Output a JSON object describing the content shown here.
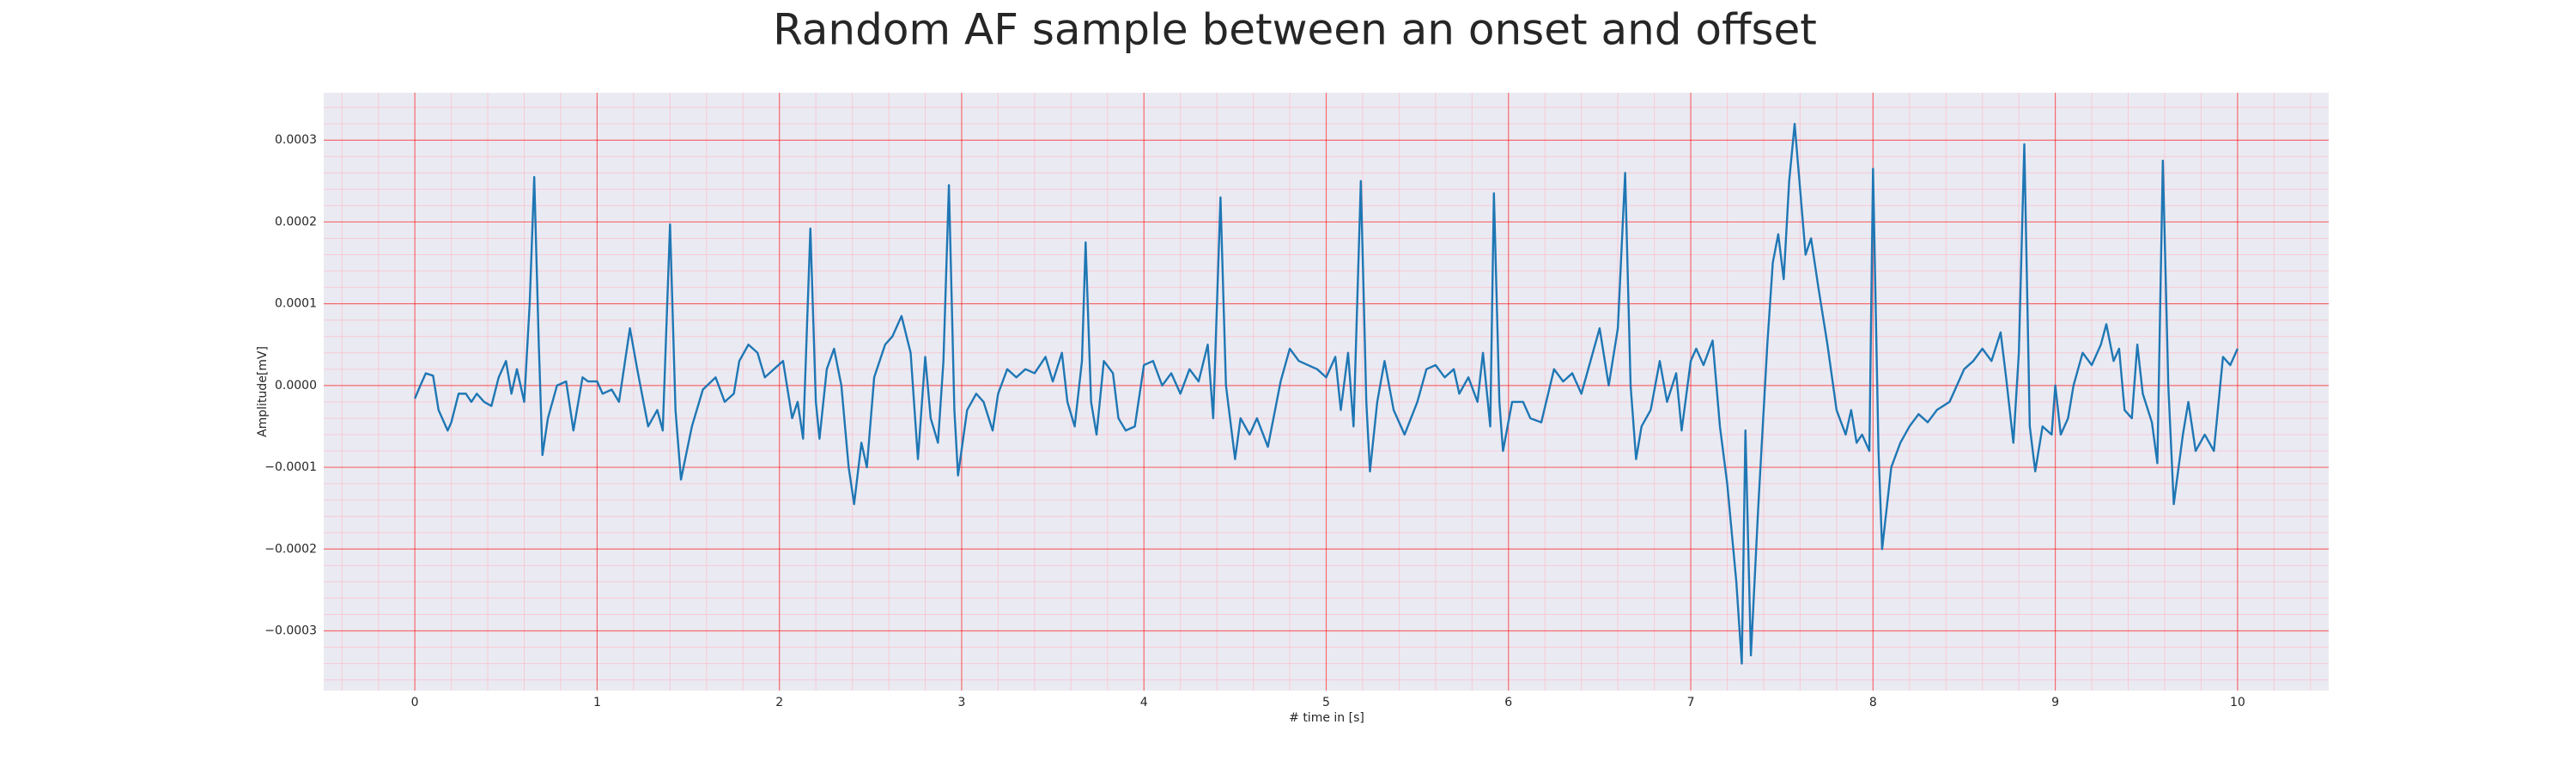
{
  "chart_data": {
    "type": "line",
    "title": "Random AF sample between an onset and offset",
    "x_label": "# time in [s]",
    "y_label": "Amplitude[mV]",
    "color": "#1f77b4",
    "background": "#eaeaf2",
    "grid": true,
    "grid_color": "#ff0000",
    "minor_grid": true,
    "minor_grid_color": "#ffb6c1",
    "xlim": [
      -0.5,
      10.5
    ],
    "ylim": [
      -0.000373,
      0.000358
    ],
    "xticks": [
      0,
      1,
      2,
      3,
      4,
      5,
      6,
      7,
      8,
      9,
      10
    ],
    "yticks": [
      {
        "value": -0.0003,
        "label": "−0.0003"
      },
      {
        "value": -0.0002,
        "label": "−0.0002"
      },
      {
        "value": -0.0001,
        "label": "−0.0001"
      },
      {
        "value": 0,
        "label": "0.0000"
      },
      0.0001,
      0.0002,
      0.0003
    ],
    "x": [
      0,
      0.03,
      0.06,
      0.1,
      0.13,
      0.18,
      0.2,
      0.24,
      0.28,
      0.31,
      0.34,
      0.38,
      0.42,
      0.46,
      0.5,
      0.53,
      0.56,
      0.6,
      0.63,
      0.655,
      0.68,
      0.7,
      0.73,
      0.78,
      0.83,
      0.87,
      0.92,
      0.95,
      1.0,
      1.03,
      1.08,
      1.12,
      1.18,
      1.22,
      1.28,
      1.33,
      1.36,
      1.4,
      1.43,
      1.46,
      1.52,
      1.58,
      1.65,
      1.7,
      1.75,
      1.78,
      1.83,
      1.88,
      1.92,
      1.97,
      2.02,
      2.07,
      2.1,
      2.13,
      2.17,
      2.2,
      2.22,
      2.26,
      2.3,
      2.34,
      2.38,
      2.41,
      2.45,
      2.48,
      2.52,
      2.58,
      2.62,
      2.67,
      2.72,
      2.76,
      2.8,
      2.83,
      2.87,
      2.9,
      2.93,
      2.96,
      2.98,
      3.03,
      3.08,
      3.12,
      3.17,
      3.2,
      3.25,
      3.3,
      3.35,
      3.4,
      3.46,
      3.5,
      3.55,
      3.58,
      3.62,
      3.66,
      3.68,
      3.71,
      3.74,
      3.78,
      3.83,
      3.86,
      3.9,
      3.95,
      4.0,
      4.05,
      4.1,
      4.15,
      4.2,
      4.25,
      4.3,
      4.35,
      4.38,
      4.42,
      4.45,
      4.5,
      4.53,
      4.58,
      4.62,
      4.68,
      4.75,
      4.8,
      4.85,
      4.9,
      4.95,
      5.0,
      5.05,
      5.08,
      5.12,
      5.15,
      5.19,
      5.22,
      5.24,
      5.28,
      5.32,
      5.37,
      5.43,
      5.5,
      5.55,
      5.6,
      5.65,
      5.7,
      5.73,
      5.78,
      5.83,
      5.86,
      5.9,
      5.92,
      5.95,
      5.97,
      6.02,
      6.08,
      6.12,
      6.18,
      6.25,
      6.3,
      6.35,
      6.4,
      6.45,
      6.5,
      6.55,
      6.6,
      6.64,
      6.67,
      6.7,
      6.73,
      6.78,
      6.83,
      6.87,
      6.92,
      6.95,
      7.0,
      7.03,
      7.07,
      7.12,
      7.16,
      7.2,
      7.25,
      7.28,
      7.3,
      7.33,
      7.37,
      7.42,
      7.45,
      7.48,
      7.51,
      7.54,
      7.57,
      7.6,
      7.63,
      7.66,
      7.7,
      7.75,
      7.8,
      7.85,
      7.88,
      7.91,
      7.94,
      7.98,
      8.0,
      8.03,
      8.05,
      8.1,
      8.15,
      8.2,
      8.25,
      8.3,
      8.35,
      8.42,
      8.5,
      8.55,
      8.6,
      8.65,
      8.7,
      8.73,
      8.77,
      8.8,
      8.83,
      8.86,
      8.89,
      8.93,
      8.98,
      9.0,
      9.03,
      9.07,
      9.1,
      9.15,
      9.2,
      9.25,
      9.28,
      9.32,
      9.35,
      9.38,
      9.42,
      9.45,
      9.48,
      9.53,
      9.56,
      9.59,
      9.62,
      9.65,
      9.7,
      9.73,
      9.77,
      9.82,
      9.87,
      9.92,
      9.96,
      10.0
    ],
    "values": [
      -1.6e-05,
      0,
      1.5e-05,
      1.2e-05,
      -3e-05,
      -5.5e-05,
      -4.5e-05,
      -1e-05,
      -1e-05,
      -2e-05,
      -1e-05,
      -2e-05,
      -2.5e-05,
      1e-05,
      3e-05,
      -1e-05,
      2e-05,
      -2e-05,
      0.0001,
      0.000255,
      5e-05,
      -8.5e-05,
      -4e-05,
      0,
      5e-06,
      -5.5e-05,
      1e-05,
      5e-06,
      5e-06,
      -1e-05,
      -5e-06,
      -2e-05,
      7e-05,
      2e-05,
      -5e-05,
      -3e-05,
      -5.5e-05,
      0.000197,
      -3e-05,
      -0.000115,
      -5e-05,
      -5e-06,
      1e-05,
      -2e-05,
      -1e-05,
      3e-05,
      5e-05,
      4e-05,
      1e-05,
      2e-05,
      3e-05,
      -4e-05,
      -2e-05,
      -6.5e-05,
      0.000192,
      -2e-05,
      -6.5e-05,
      2e-05,
      4.5e-05,
      0,
      -0.0001,
      -0.000145,
      -7e-05,
      -0.0001,
      1e-05,
      5e-05,
      6e-05,
      8.5e-05,
      4e-05,
      -9e-05,
      3.5e-05,
      -4e-05,
      -7e-05,
      3e-05,
      0.000245,
      -3e-05,
      -0.00011,
      -3e-05,
      -1e-05,
      -2e-05,
      -5.5e-05,
      -1e-05,
      2e-05,
      1e-05,
      2e-05,
      1.5e-05,
      3.5e-05,
      5e-06,
      4e-05,
      -2e-05,
      -5e-05,
      3e-05,
      0.000175,
      -2e-05,
      -6e-05,
      3e-05,
      1.5e-05,
      -4e-05,
      -5.5e-05,
      -5e-05,
      2.5e-05,
      3e-05,
      0,
      1.5e-05,
      -1e-05,
      2e-05,
      5e-06,
      5e-05,
      -4e-05,
      0.00023,
      0,
      -9e-05,
      -4e-05,
      -6e-05,
      -4e-05,
      -7.5e-05,
      5e-06,
      4.5e-05,
      3e-05,
      2.5e-05,
      2e-05,
      1e-05,
      3.5e-05,
      -3e-05,
      4e-05,
      -5e-05,
      0.00025,
      -2e-05,
      -0.000105,
      -2e-05,
      3e-05,
      -3e-05,
      -6e-05,
      -2e-05,
      2e-05,
      2.5e-05,
      1e-05,
      2e-05,
      -1e-05,
      1e-05,
      -2e-05,
      4e-05,
      -5e-05,
      0.000235,
      -2e-05,
      -8e-05,
      -2e-05,
      -2e-05,
      -4e-05,
      -4.5e-05,
      2e-05,
      5e-06,
      1.5e-05,
      -1e-05,
      3e-05,
      7e-05,
      0,
      7e-05,
      0.00026,
      0,
      -9e-05,
      -5e-05,
      -3e-05,
      3e-05,
      -2e-05,
      1.5e-05,
      -5.5e-05,
      3e-05,
      4.5e-05,
      2.5e-05,
      5.5e-05,
      -5e-05,
      -0.00012,
      -0.00024,
      -0.00034,
      -5.5e-05,
      -0.00033,
      -0.00015,
      5e-05,
      0.00015,
      0.000185,
      0.00013,
      0.00025,
      0.00032,
      0.00024,
      0.00016,
      0.00018,
      0.00012,
      5e-05,
      -3e-05,
      -6e-05,
      -3e-05,
      -7e-05,
      -6e-05,
      -8e-05,
      0.000265,
      -8e-05,
      -0.0002,
      -0.0001,
      -7e-05,
      -5e-05,
      -3.5e-05,
      -4.5e-05,
      -3e-05,
      -2e-05,
      2e-05,
      3e-05,
      4.5e-05,
      3e-05,
      6.5e-05,
      1e-05,
      -7e-05,
      4e-05,
      0.000295,
      -5e-05,
      -0.000105,
      -5e-05,
      -6e-05,
      0,
      -6e-05,
      -4e-05,
      0,
      4e-05,
      2.5e-05,
      5e-05,
      7.5e-05,
      3e-05,
      4.5e-05,
      -3e-05,
      -4e-05,
      5e-05,
      -1e-05,
      -4.5e-05,
      -9.5e-05,
      0.000275,
      0,
      -0.000145,
      -6e-05,
      -2e-05,
      -8e-05,
      -6e-05,
      -8e-05,
      3.5e-05,
      2.5e-05,
      4.5e-05
    ]
  }
}
